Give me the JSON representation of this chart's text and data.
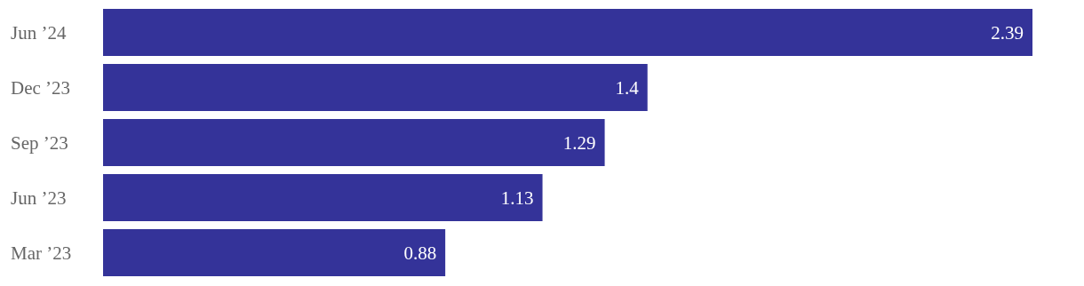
{
  "chart_data": {
    "type": "bar",
    "orientation": "horizontal",
    "categories": [
      "Jun ’24",
      "Dec ’23",
      "Sep ’23",
      "Jun ’23",
      "Mar ’23"
    ],
    "values": [
      2.39,
      1.4,
      1.29,
      1.13,
      0.88
    ],
    "color": "#343399",
    "data_labels": true
  }
}
